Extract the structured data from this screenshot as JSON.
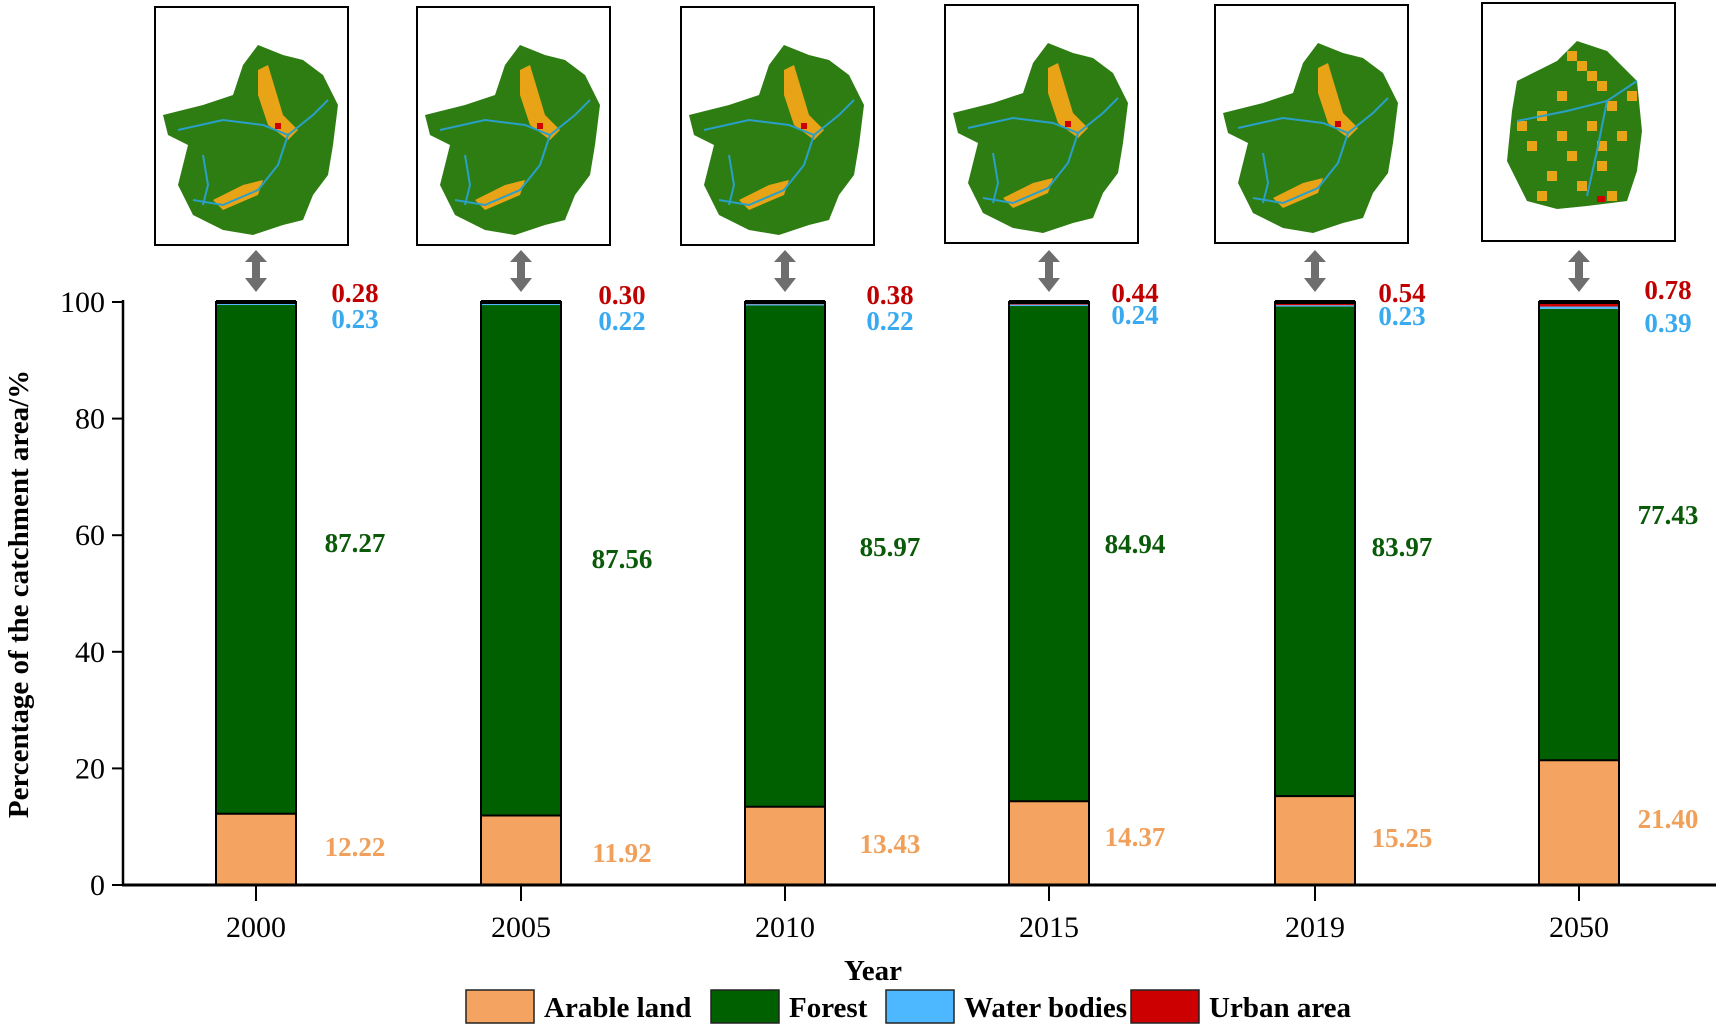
{
  "chart_data": {
    "type": "bar",
    "stacked": true,
    "title": "",
    "xlabel": "Year",
    "ylabel": "Percentage of the catchment area/%",
    "ylim": [
      0,
      100
    ],
    "yticks": [
      "0",
      "20",
      "40",
      "60",
      "80",
      "100"
    ],
    "categories": [
      "2000",
      "2005",
      "2010",
      "2015",
      "2019",
      "2050"
    ],
    "series": [
      {
        "name": "Arable land",
        "color": "#f4a460",
        "label_color": "#f0a05a",
        "values": [
          12.22,
          11.92,
          13.43,
          14.37,
          15.25,
          21.4
        ],
        "labels": [
          "12.22",
          "11.92",
          "13.43",
          "14.37",
          "15.25",
          "21.40"
        ]
      },
      {
        "name": "Forest",
        "color": "#006000",
        "label_color": "#0a5a0a",
        "values": [
          87.27,
          87.56,
          85.97,
          84.94,
          83.97,
          77.43
        ],
        "labels": [
          "87.27",
          "87.56",
          "85.97",
          "84.94",
          "83.97",
          "77.43"
        ]
      },
      {
        "name": "Water bodies",
        "color": "#4db8ff",
        "label_color": "#3aaaf0",
        "values": [
          0.23,
          0.22,
          0.22,
          0.24,
          0.23,
          0.39
        ],
        "labels": [
          "0.23",
          "0.22",
          "0.22",
          "0.24",
          "0.23",
          "0.39"
        ]
      },
      {
        "name": "Urban area",
        "color": "#cc0000",
        "label_color": "#c00000",
        "values": [
          0.28,
          0.3,
          0.38,
          0.44,
          0.54,
          0.78
        ],
        "labels": [
          "0.28",
          "0.30",
          "0.38",
          "0.44",
          "0.54",
          "0.78"
        ]
      }
    ],
    "legend": [
      "Arable land",
      "Forest",
      "Water bodies",
      "Urban area"
    ],
    "legend_position": "bottom",
    "grid": false,
    "annotations": "Land-use map thumbnail above each bar linked by a double-headed arrow"
  },
  "map_thumbnails": [
    "2000",
    "2005",
    "2010",
    "2015",
    "2019",
    "2050"
  ]
}
